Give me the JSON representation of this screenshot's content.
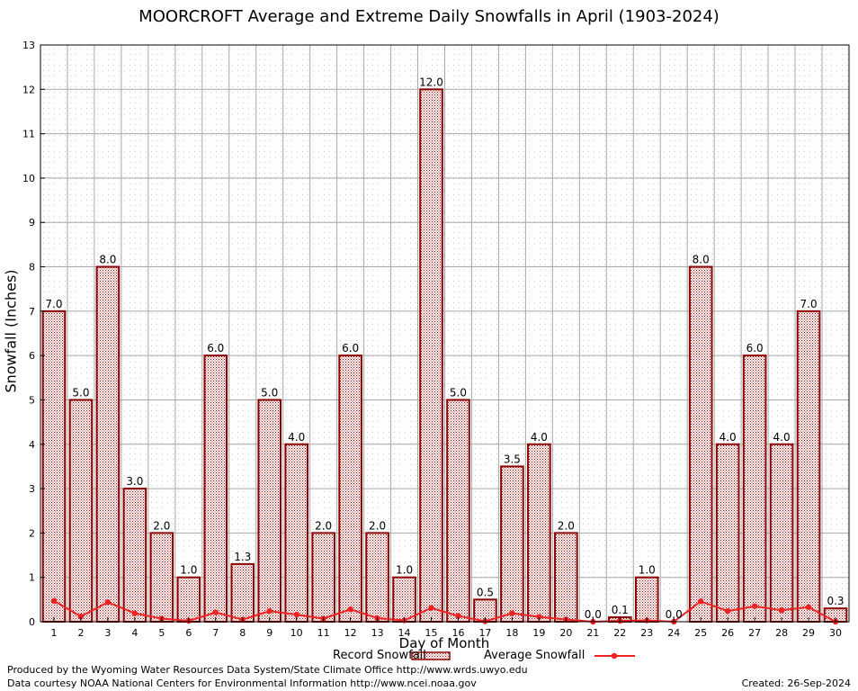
{
  "chart_data": {
    "type": "bar",
    "title": "MOORCROFT Average and Extreme Daily Snowfalls in April (1903-2024)",
    "xlabel": "Day of Month",
    "ylabel": "Snowfall (Inches)",
    "ylim": [
      0,
      13
    ],
    "yticks": [
      "0",
      "1",
      "2",
      "3",
      "4",
      "5",
      "6",
      "7",
      "8",
      "9",
      "10",
      "11",
      "12",
      "13"
    ],
    "categories": [
      "1",
      "2",
      "3",
      "4",
      "5",
      "6",
      "7",
      "8",
      "9",
      "10",
      "11",
      "12",
      "13",
      "14",
      "15",
      "16",
      "17",
      "18",
      "19",
      "20",
      "21",
      "22",
      "23",
      "24",
      "25",
      "26",
      "27",
      "28",
      "29",
      "30"
    ],
    "series": [
      {
        "name": "Record Snowfall",
        "type": "bar",
        "values": [
          7.0,
          5.0,
          8.0,
          3.0,
          2.0,
          1.0,
          6.0,
          1.3,
          5.0,
          4.0,
          2.0,
          6.0,
          2.0,
          1.0,
          12.0,
          5.0,
          0.5,
          3.5,
          4.0,
          2.0,
          0.0,
          0.1,
          1.0,
          0.0,
          8.0,
          4.0,
          6.0,
          4.0,
          7.0,
          0.3
        ],
        "labels": [
          "7.0",
          "5.0",
          "8.0",
          "3.0",
          "2.0",
          "1.0",
          "6.0",
          "1.3",
          "5.0",
          "4.0",
          "2.0",
          "6.0",
          "2.0",
          "1.0",
          "12.0",
          "5.0",
          "0.5",
          "3.5",
          "4.0",
          "2.0",
          "0.0",
          "0.1",
          "1.0",
          "0.0",
          "8.0",
          "4.0",
          "6.0",
          "4.0",
          "7.0",
          "0.3"
        ],
        "color": "#b00000"
      },
      {
        "name": "Average Snowfall",
        "type": "line",
        "values": [
          0.47,
          0.12,
          0.44,
          0.19,
          0.07,
          0.02,
          0.21,
          0.05,
          0.24,
          0.16,
          0.07,
          0.28,
          0.08,
          0.03,
          0.31,
          0.13,
          0.01,
          0.19,
          0.11,
          0.05,
          0.0,
          0.02,
          0.03,
          0.0,
          0.46,
          0.24,
          0.35,
          0.26,
          0.33,
          0.0
        ],
        "color": "#ee2222"
      }
    ],
    "grid": true,
    "legend": "bottom-center"
  },
  "footer": {
    "line1": "Produced by the Wyoming Water Resources Data System/State Climate Office http://www.wrds.uwyo.edu",
    "line2": "Data courtesy NOAA National Centers for Environmental Information http://www.ncei.noaa.gov",
    "created": "Created:  26-Sep-2024"
  }
}
